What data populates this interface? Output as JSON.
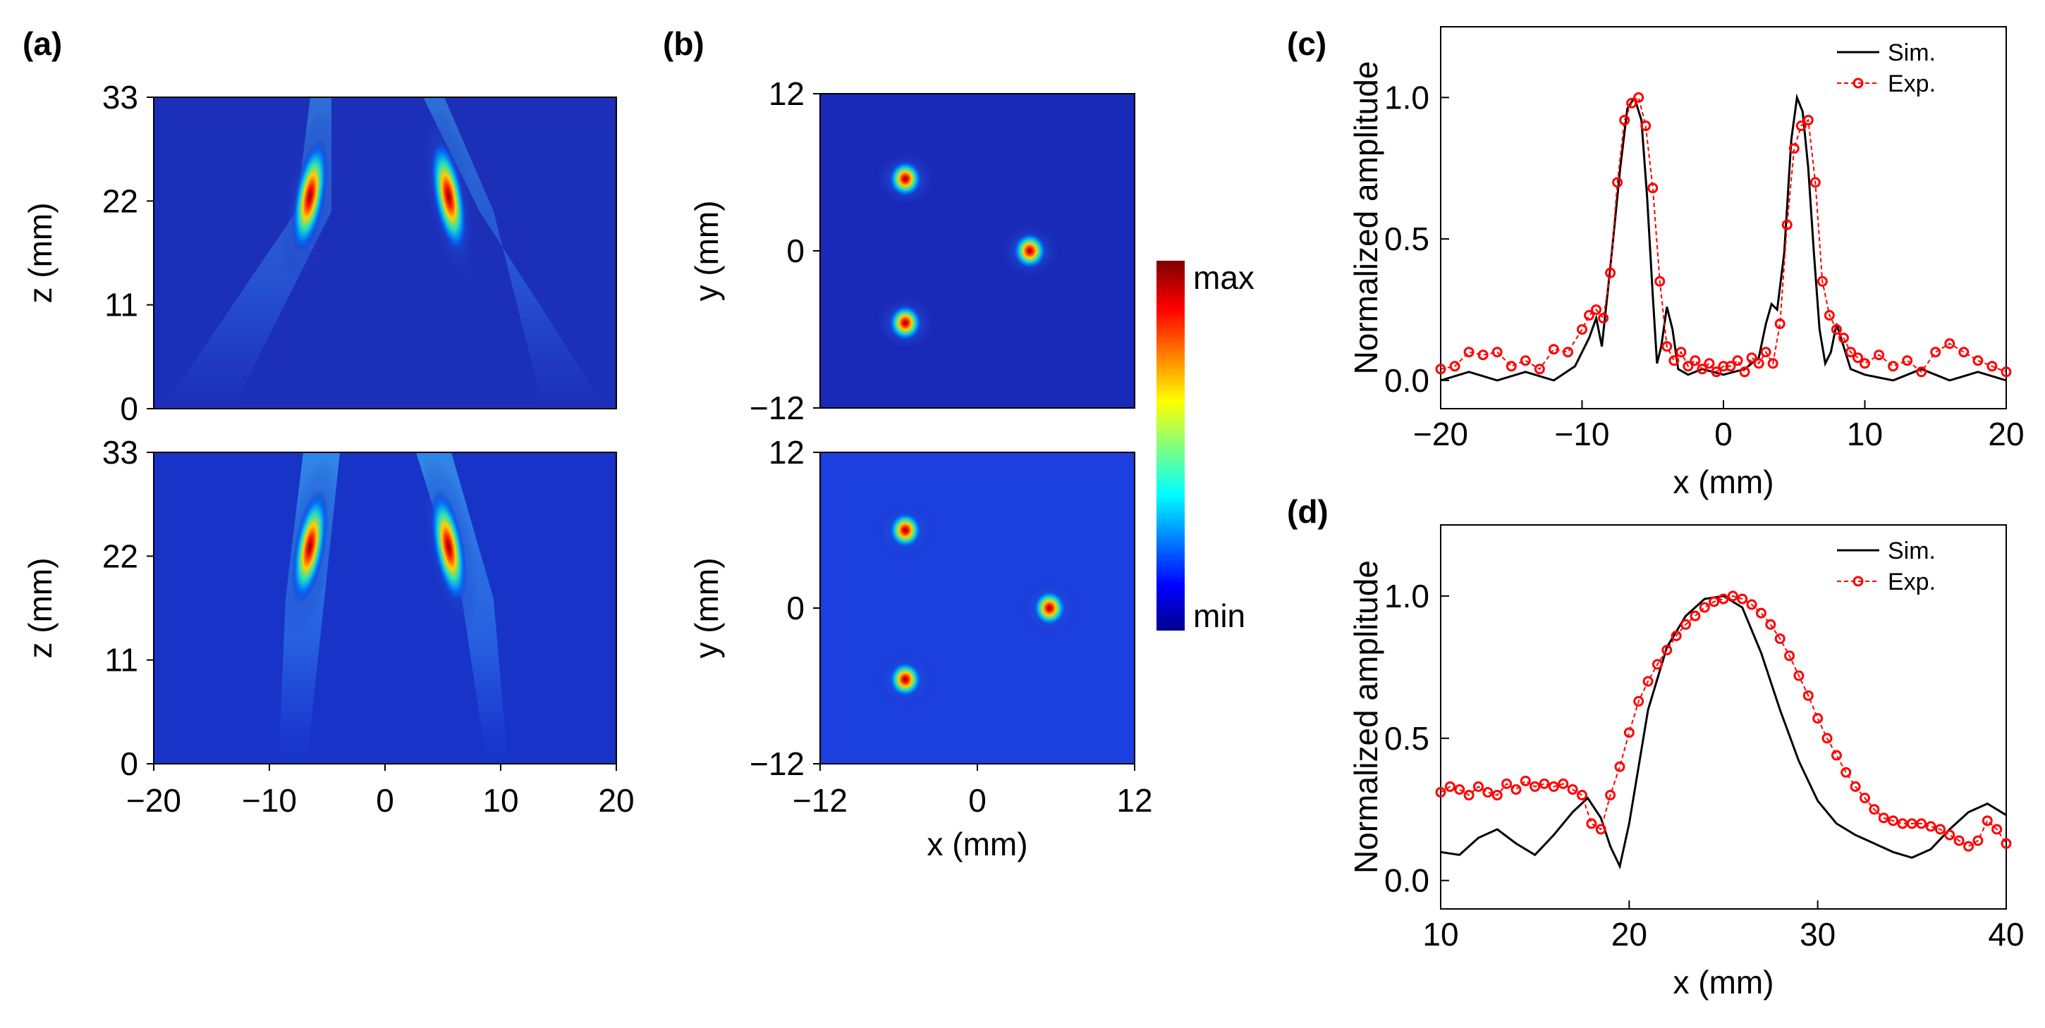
{
  "panels": {
    "a": {
      "label": "(a)"
    },
    "b": {
      "label": "(b)"
    },
    "c": {
      "label": "(c)"
    },
    "d": {
      "label": "(d)"
    }
  },
  "colorbar": {
    "max_label": "max",
    "min_label": "min",
    "colormap": "jet"
  },
  "colors": {
    "simulation": "#000000",
    "experiment": "#ff0000"
  },
  "chart_data": [
    {
      "id": "a-top",
      "type": "heatmap",
      "ylabel": "z (mm)",
      "xlim": [
        -20,
        20
      ],
      "ylim": [
        0,
        33
      ],
      "yticks": [
        "0",
        "11",
        "22",
        "33"
      ],
      "spots": [
        {
          "x": -6.5,
          "z": 22.5,
          "intensity": 1.0
        },
        {
          "x": 5.5,
          "z": 22.5,
          "intensity": 1.0
        }
      ]
    },
    {
      "id": "a-bottom",
      "type": "heatmap",
      "xlabel": "",
      "ylabel": "z (mm)",
      "xlim": [
        -20,
        20
      ],
      "ylim": [
        0,
        33
      ],
      "xticks": [
        "−20",
        "−10",
        "0",
        "10",
        "20"
      ],
      "yticks": [
        "0",
        "11",
        "22",
        "33"
      ],
      "spots": [
        {
          "x": -6.5,
          "z": 23,
          "intensity": 1.0
        },
        {
          "x": 5.5,
          "z": 23,
          "intensity": 1.0
        }
      ]
    },
    {
      "id": "b-top",
      "type": "heatmap",
      "ylabel": "y (mm)",
      "xlim": [
        -12,
        12
      ],
      "ylim": [
        -12,
        12
      ],
      "yticks": [
        "−12",
        "0",
        "12"
      ],
      "spots": [
        {
          "x": -5.5,
          "y": 5.5,
          "intensity": 1.0
        },
        {
          "x": 4,
          "y": 0,
          "intensity": 1.0
        },
        {
          "x": -5.5,
          "y": -5.5,
          "intensity": 1.0
        }
      ]
    },
    {
      "id": "b-bottom",
      "type": "heatmap",
      "xlabel": "x (mm)",
      "ylabel": "y (mm)",
      "xlim": [
        -12,
        12
      ],
      "ylim": [
        -12,
        12
      ],
      "xticks": [
        "−12",
        "0",
        "12"
      ],
      "yticks": [
        "−12",
        "0",
        "12"
      ],
      "spots": [
        {
          "x": -5.5,
          "y": 6,
          "intensity": 1.0
        },
        {
          "x": 5.5,
          "y": 0,
          "intensity": 1.0
        },
        {
          "x": -5.5,
          "y": -5.5,
          "intensity": 1.0
        }
      ]
    },
    {
      "id": "c",
      "type": "line",
      "xlabel": "x (mm)",
      "ylabel": "Normalized amplitude",
      "xlim": [
        -20,
        20
      ],
      "ylim": [
        -0.1,
        1.25
      ],
      "xticks": [
        -20,
        -10,
        0,
        10,
        20
      ],
      "xtick_labels": [
        "−20",
        "−10",
        "0",
        "10",
        "20"
      ],
      "yticks": [
        0.0,
        0.5,
        1.0
      ],
      "ytick_labels": [
        "0.0",
        "0.5",
        "1.0"
      ],
      "legend": "top-right",
      "series": [
        {
          "name": "Sim.",
          "x": [
            -20,
            -18,
            -16,
            -14,
            -12,
            -10.5,
            -9.5,
            -9,
            -8.6,
            -8,
            -7.3,
            -6.8,
            -6.3,
            -5.8,
            -5.4,
            -5,
            -4.7,
            -4.4,
            -4,
            -3.6,
            -3.2,
            -2.5,
            -1.5,
            0,
            1.5,
            2.5,
            3,
            3.4,
            3.8,
            4.3,
            4.8,
            5.2,
            5.6,
            6,
            6.4,
            6.8,
            7.2,
            7.6,
            8,
            8.5,
            9,
            10,
            12,
            14,
            16,
            18,
            20
          ],
          "y": [
            0.0,
            0.03,
            0.0,
            0.03,
            0.0,
            0.05,
            0.15,
            0.22,
            0.12,
            0.4,
            0.75,
            0.96,
            1.0,
            0.92,
            0.65,
            0.3,
            0.06,
            0.12,
            0.26,
            0.18,
            0.04,
            0.02,
            0.04,
            0.02,
            0.04,
            0.08,
            0.2,
            0.27,
            0.25,
            0.45,
            0.85,
            1.0,
            0.95,
            0.75,
            0.45,
            0.18,
            0.06,
            0.1,
            0.2,
            0.12,
            0.04,
            0.02,
            0.0,
            0.04,
            0.0,
            0.03,
            0.0
          ]
        },
        {
          "name": "Exp.",
          "x": [
            -20,
            -19,
            -18,
            -17,
            -16,
            -15,
            -14,
            -13,
            -12,
            -11,
            -10,
            -9.5,
            -9,
            -8.5,
            -8,
            -7.5,
            -7,
            -6.5,
            -6,
            -5.5,
            -5,
            -4.5,
            -4,
            -3.5,
            -3,
            -2.5,
            -2,
            -1.5,
            -1,
            -0.5,
            0,
            0.5,
            1,
            1.5,
            2,
            2.5,
            3,
            3.5,
            4,
            4.5,
            5,
            5.5,
            6,
            6.5,
            7,
            7.5,
            8,
            8.5,
            9,
            9.5,
            10,
            11,
            12,
            13,
            14,
            15,
            16,
            17,
            18,
            19,
            20
          ],
          "y": [
            0.04,
            0.05,
            0.1,
            0.09,
            0.1,
            0.05,
            0.07,
            0.04,
            0.11,
            0.1,
            0.18,
            0.23,
            0.25,
            0.22,
            0.38,
            0.7,
            0.92,
            0.98,
            1.0,
            0.9,
            0.68,
            0.35,
            0.12,
            0.07,
            0.1,
            0.05,
            0.07,
            0.04,
            0.06,
            0.03,
            0.05,
            0.05,
            0.07,
            0.03,
            0.08,
            0.06,
            0.1,
            0.06,
            0.2,
            0.55,
            0.82,
            0.9,
            0.92,
            0.7,
            0.35,
            0.23,
            0.18,
            0.15,
            0.1,
            0.08,
            0.06,
            0.09,
            0.05,
            0.07,
            0.03,
            0.1,
            0.13,
            0.1,
            0.07,
            0.05,
            0.03
          ]
        }
      ]
    },
    {
      "id": "d",
      "type": "line",
      "xlabel": "x (mm)",
      "ylabel": "Normalized amplitude",
      "xlim": [
        10,
        40
      ],
      "ylim": [
        -0.1,
        1.25
      ],
      "xticks": [
        10,
        20,
        30,
        40
      ],
      "xtick_labels": [
        "10",
        "20",
        "30",
        "40"
      ],
      "yticks": [
        0.0,
        0.5,
        1.0
      ],
      "ytick_labels": [
        "0.0",
        "0.5",
        "1.0"
      ],
      "legend": "top-right",
      "series": [
        {
          "name": "Sim.",
          "x": [
            10,
            11,
            12,
            13,
            14,
            15,
            16,
            17,
            17.8,
            18.5,
            19,
            19.5,
            20,
            21,
            22,
            23,
            24,
            25,
            26,
            27,
            28,
            29,
            30,
            31,
            32,
            33,
            34,
            35,
            36,
            37,
            38,
            39,
            40
          ],
          "y": [
            0.1,
            0.09,
            0.15,
            0.18,
            0.13,
            0.09,
            0.16,
            0.24,
            0.29,
            0.22,
            0.12,
            0.05,
            0.2,
            0.6,
            0.82,
            0.93,
            0.99,
            1.0,
            0.96,
            0.8,
            0.6,
            0.42,
            0.28,
            0.2,
            0.16,
            0.13,
            0.1,
            0.08,
            0.11,
            0.18,
            0.24,
            0.27,
            0.23
          ]
        },
        {
          "name": "Exp.",
          "x": [
            10,
            10.5,
            11,
            11.5,
            12,
            12.5,
            13,
            13.5,
            14,
            14.5,
            15,
            15.5,
            16,
            16.5,
            17,
            17.5,
            18,
            18.5,
            19,
            19.5,
            20,
            20.5,
            21,
            21.5,
            22,
            22.5,
            23,
            23.5,
            24,
            24.5,
            25,
            25.5,
            26,
            26.5,
            27,
            27.5,
            28,
            28.5,
            29,
            29.5,
            30,
            30.5,
            31,
            31.5,
            32,
            32.5,
            33,
            33.5,
            34,
            34.5,
            35,
            35.5,
            36,
            36.5,
            37,
            37.5,
            38,
            38.5,
            39,
            39.5,
            40
          ],
          "y": [
            0.31,
            0.33,
            0.32,
            0.3,
            0.33,
            0.31,
            0.3,
            0.34,
            0.32,
            0.35,
            0.33,
            0.34,
            0.33,
            0.34,
            0.32,
            0.3,
            0.2,
            0.18,
            0.3,
            0.4,
            0.52,
            0.63,
            0.7,
            0.76,
            0.81,
            0.86,
            0.9,
            0.93,
            0.96,
            0.98,
            0.99,
            1.0,
            0.99,
            0.97,
            0.94,
            0.9,
            0.85,
            0.79,
            0.72,
            0.65,
            0.57,
            0.5,
            0.44,
            0.38,
            0.33,
            0.29,
            0.25,
            0.22,
            0.21,
            0.2,
            0.2,
            0.2,
            0.19,
            0.18,
            0.16,
            0.14,
            0.12,
            0.14,
            0.21,
            0.18,
            0.13
          ]
        }
      ]
    }
  ]
}
